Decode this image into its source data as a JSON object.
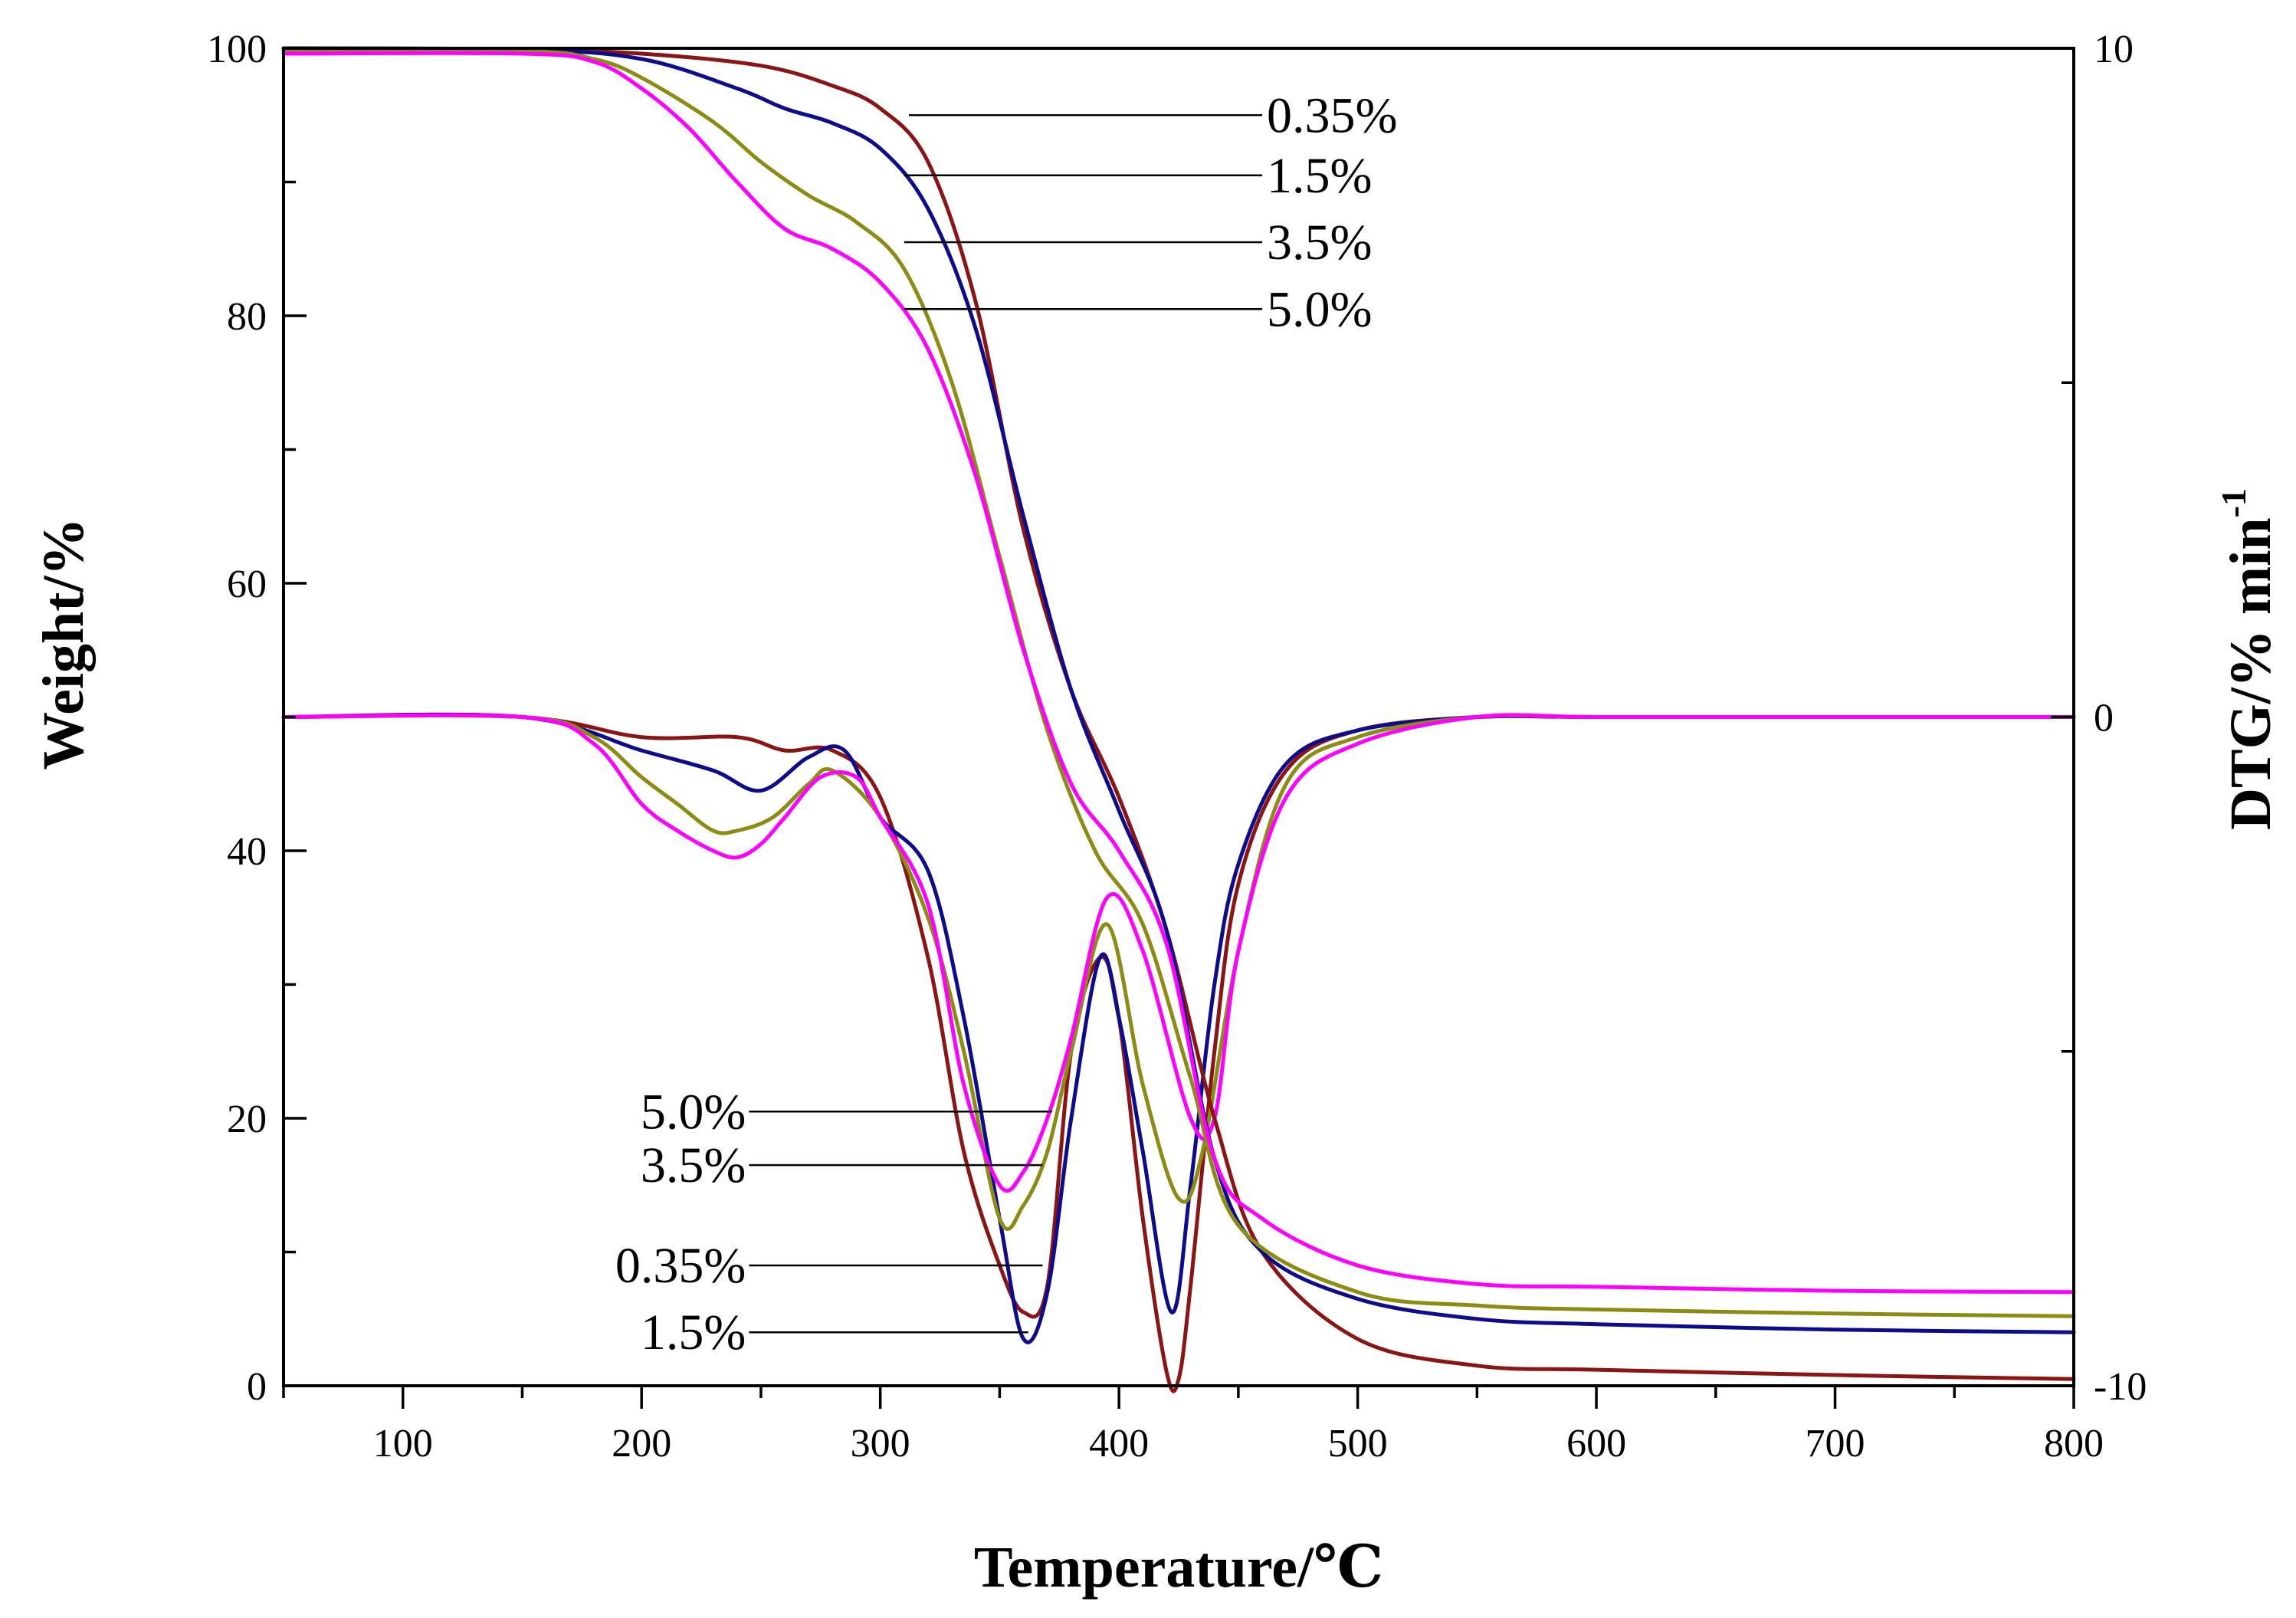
{
  "chart_data": {
    "type": "line",
    "xlabel": "Temperature/℃",
    "ylabel_left": "Weight/%",
    "ylabel_right_base": "DTG/% min",
    "ylabel_right_sup": "-1",
    "xlim": [
      50,
      800
    ],
    "ylim_left": [
      0,
      100
    ],
    "ylim_right": [
      -10,
      10
    ],
    "x_ticks": [
      100,
      200,
      300,
      400,
      500,
      600,
      700,
      800
    ],
    "y_left_ticks": [
      0,
      20,
      40,
      60,
      80,
      100
    ],
    "y_right_ticks": [
      -10,
      0,
      10
    ],
    "colors": {
      "0.35%": "#8b1414",
      "1.5%": "#0c0c8c",
      "3.5%": "#8c8c14",
      "5.0%": "#ff00ff"
    },
    "tg_series": [
      {
        "name": "0.35%",
        "x": [
          50,
          150,
          200,
          250,
          280,
          300,
          320,
          340,
          360,
          380,
          400,
          420,
          440,
          460,
          500,
          550,
          600,
          700,
          800
        ],
        "y": [
          100,
          99.9,
          99.6,
          98.7,
          97.2,
          95.5,
          91.5,
          81,
          64,
          52,
          44,
          34,
          20,
          10,
          3.5,
          1.5,
          1.2,
          0.8,
          0.5
        ]
      },
      {
        "name": "1.5%",
        "x": [
          50,
          150,
          200,
          240,
          260,
          280,
          300,
          320,
          340,
          360,
          380,
          400,
          420,
          440,
          460,
          500,
          550,
          600,
          700,
          800
        ],
        "y": [
          100,
          99.9,
          99.2,
          97,
          95.5,
          94.4,
          92.5,
          88,
          79,
          65,
          52,
          43,
          34,
          17,
          10,
          6.5,
          5,
          4.6,
          4.2,
          4
        ]
      },
      {
        "name": "3.5%",
        "x": [
          50,
          150,
          180,
          200,
          230,
          250,
          270,
          290,
          310,
          330,
          350,
          370,
          390,
          410,
          430,
          450,
          500,
          550,
          600,
          700,
          800
        ],
        "y": [
          99.8,
          99.8,
          99.2,
          97.8,
          94.5,
          91.5,
          89,
          87,
          83.5,
          75,
          62,
          49,
          40,
          34.5,
          23,
          12,
          7,
          6,
          5.7,
          5.4,
          5.2
        ]
      },
      {
        "name": "5.0%",
        "x": [
          50,
          150,
          180,
          200,
          220,
          240,
          260,
          280,
          300,
          320,
          340,
          360,
          380,
          400,
          420,
          440,
          460,
          500,
          550,
          600,
          700,
          800
        ],
        "y": [
          99.6,
          99.6,
          99,
          97,
          94,
          90,
          86.5,
          85,
          82.5,
          77.5,
          68,
          55,
          45,
          40,
          33,
          17,
          12.5,
          9,
          7.6,
          7.4,
          7.1,
          7
        ]
      }
    ],
    "dtg_series": [
      {
        "name": "0.35%",
        "x": [
          50,
          150,
          200,
          240,
          260,
          280,
          300,
          320,
          335,
          350,
          360,
          370,
          380,
          392,
          400,
          410,
          420,
          425,
          430,
          440,
          450,
          470,
          500,
          550,
          600,
          700,
          800
        ],
        "y": [
          0,
          0,
          -0.3,
          -0.3,
          -0.5,
          -0.5,
          -1.2,
          -3.6,
          -6.5,
          -8.2,
          -8.9,
          -8.5,
          -5,
          -3.6,
          -4.5,
          -7.5,
          -9.8,
          -9.9,
          -8.5,
          -5,
          -2.5,
          -0.8,
          -0.2,
          0,
          0,
          0,
          0
        ]
      },
      {
        "name": "1.5%",
        "x": [
          50,
          150,
          200,
          230,
          250,
          270,
          285,
          300,
          320,
          335,
          350,
          360,
          370,
          380,
          392,
          400,
          410,
          422,
          430,
          440,
          450,
          470,
          500,
          550,
          600,
          700,
          800
        ],
        "y": [
          0,
          0,
          -0.5,
          -0.8,
          -1.1,
          -0.6,
          -0.5,
          -1.5,
          -2.3,
          -4.5,
          -7.5,
          -9.3,
          -8.6,
          -6,
          -3.6,
          -4.5,
          -6.5,
          -8.9,
          -7,
          -4,
          -2.2,
          -0.7,
          -0.2,
          0,
          0,
          0,
          0
        ]
      },
      {
        "name": "3.5%",
        "x": [
          50,
          150,
          180,
          200,
          215,
          230,
          240,
          255,
          270,
          280,
          300,
          320,
          335,
          350,
          360,
          370,
          380,
          395,
          410,
          425,
          435,
          450,
          470,
          500,
          550,
          600,
          700,
          800
        ],
        "y": [
          0,
          0,
          -0.3,
          -0.9,
          -1.3,
          -1.7,
          -1.7,
          -1.5,
          -1,
          -0.8,
          -1.5,
          -3,
          -5,
          -7.5,
          -7.3,
          -6.5,
          -5,
          -3.1,
          -5.5,
          -7.2,
          -6.5,
          -3.5,
          -1,
          -0.3,
          0,
          0,
          0,
          0
        ]
      },
      {
        "name": "5.0%",
        "x": [
          50,
          150,
          180,
          200,
          215,
          230,
          240,
          250,
          260,
          275,
          290,
          300,
          320,
          335,
          350,
          360,
          370,
          380,
          395,
          410,
          430,
          440,
          450,
          470,
          500,
          550,
          600,
          700,
          800
        ],
        "y": [
          0,
          0,
          -0.4,
          -1.3,
          -1.7,
          -2,
          -2.1,
          -1.9,
          -1.5,
          -0.9,
          -0.9,
          -1.5,
          -2.8,
          -5.5,
          -7,
          -6.8,
          -6,
          -4.8,
          -2.7,
          -3.5,
          -6,
          -6,
          -3.5,
          -1.2,
          -0.4,
          0,
          0,
          0,
          0
        ]
      }
    ],
    "annotations_tg": [
      {
        "label": "0.35%",
        "x": 312,
        "y": 95,
        "label_x": 460
      },
      {
        "label": "1.5%",
        "x": 310,
        "y": 90.5,
        "label_x": 460
      },
      {
        "label": "3.5%",
        "x": 310,
        "y": 85.5,
        "label_x": 460
      },
      {
        "label": "5.0%",
        "x": 310,
        "y": 80.5,
        "label_x": 460
      }
    ],
    "annotations_dtg": [
      {
        "label": "5.0%",
        "x": 372,
        "y": -5.9,
        "label_x": 245
      },
      {
        "label": "3.5%",
        "x": 368,
        "y": -6.7,
        "label_x": 245
      },
      {
        "label": "0.35%",
        "x": 368,
        "y": -8.2,
        "label_x": 245
      },
      {
        "label": "1.5%",
        "x": 362,
        "y": -9.2,
        "label_x": 245
      }
    ]
  }
}
